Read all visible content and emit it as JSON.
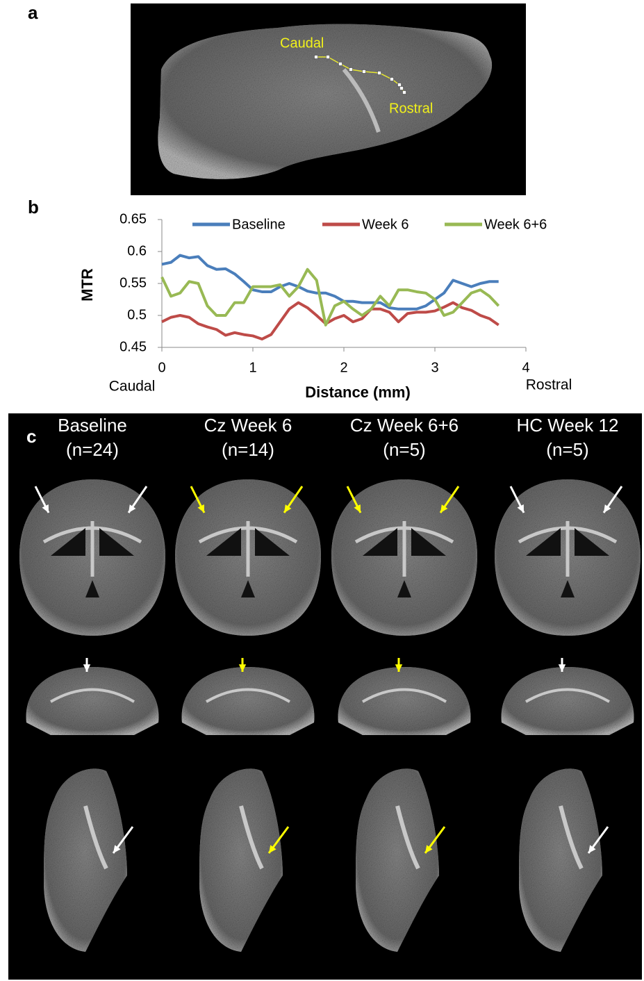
{
  "panels": {
    "a": {
      "label": "a",
      "annotations": [
        "Caudal",
        "Rostral"
      ]
    },
    "b": {
      "label": "b"
    },
    "c": {
      "label": "c",
      "columns": [
        {
          "title": "Baseline",
          "n": "(n=24)"
        },
        {
          "title": "Cz Week 6",
          "n": "(n=14)"
        },
        {
          "title": "Cz Week 6+6",
          "n": "(n=5)"
        },
        {
          "title": "HC Week 12",
          "n": "(n=5)"
        }
      ]
    }
  },
  "chart_data": {
    "type": "line",
    "x_label": "Distance (mm)",
    "y_label": "MTR",
    "x_end_labels": [
      "Caudal",
      "Rostral"
    ],
    "x": [
      0,
      0.1,
      0.2,
      0.3,
      0.4,
      0.5,
      0.6,
      0.7,
      0.8,
      0.9,
      1.0,
      1.1,
      1.2,
      1.3,
      1.4,
      1.5,
      1.6,
      1.7,
      1.8,
      1.9,
      2.0,
      2.1,
      2.2,
      2.3,
      2.4,
      2.5,
      2.6,
      2.7,
      2.8,
      2.9,
      3.0,
      3.1,
      3.2,
      3.3,
      3.4,
      3.5,
      3.6,
      3.7
    ],
    "series": [
      {
        "name": "Baseline",
        "color": "#4a7ebb",
        "values": [
          0.58,
          0.583,
          0.594,
          0.59,
          0.592,
          0.578,
          0.572,
          0.573,
          0.565,
          0.553,
          0.54,
          0.537,
          0.537,
          0.545,
          0.55,
          0.545,
          0.538,
          0.535,
          0.535,
          0.53,
          0.522,
          0.522,
          0.52,
          0.52,
          0.52,
          0.512,
          0.51,
          0.51,
          0.51,
          0.515,
          0.525,
          0.535,
          0.555,
          0.55,
          0.545,
          0.55,
          0.553,
          0.553
        ]
      },
      {
        "name": "Week 6",
        "color": "#be4b48",
        "values": [
          0.49,
          0.497,
          0.5,
          0.497,
          0.487,
          0.482,
          0.478,
          0.469,
          0.473,
          0.47,
          0.468,
          0.463,
          0.47,
          0.49,
          0.51,
          0.52,
          0.512,
          0.5,
          0.487,
          0.495,
          0.5,
          0.49,
          0.495,
          0.51,
          0.51,
          0.505,
          0.49,
          0.503,
          0.505,
          0.505,
          0.507,
          0.513,
          0.52,
          0.512,
          0.508,
          0.5,
          0.495,
          0.485
        ]
      },
      {
        "name": "Week 6+6",
        "color": "#98b954",
        "values": [
          0.56,
          0.53,
          0.535,
          0.553,
          0.55,
          0.515,
          0.5,
          0.5,
          0.52,
          0.52,
          0.545,
          0.545,
          0.545,
          0.548,
          0.53,
          0.545,
          0.572,
          0.555,
          0.485,
          0.515,
          0.522,
          0.51,
          0.5,
          0.51,
          0.53,
          0.515,
          0.54,
          0.54,
          0.537,
          0.535,
          0.525,
          0.5,
          0.505,
          0.52,
          0.535,
          0.54,
          0.53,
          0.515
        ]
      }
    ],
    "xlim": [
      0,
      4
    ],
    "xticks": [
      0,
      1,
      2,
      3,
      4
    ],
    "ylim": [
      0.45,
      0.65
    ],
    "yticks": [
      0.45,
      0.5,
      0.55,
      0.6,
      0.65
    ],
    "legend": "top"
  }
}
